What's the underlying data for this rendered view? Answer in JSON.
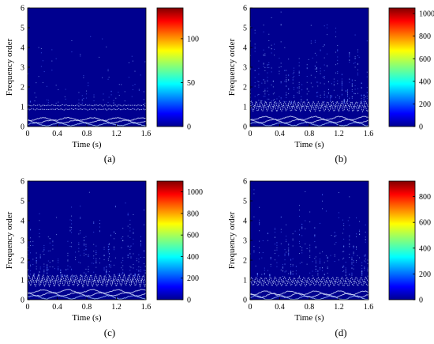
{
  "chart_data": [
    {
      "type": "heatmap",
      "panel": "(a)",
      "xlabel": "Time (s)",
      "ylabel": "Frequency order",
      "xlim": [
        0,
        1.6
      ],
      "ylim": [
        0,
        6
      ],
      "x_ticks": [
        "0",
        "0.4",
        "0.8",
        "1.2",
        "1.6"
      ],
      "y_ticks": [
        "0",
        "1",
        "2",
        "3",
        "4",
        "5",
        "6"
      ],
      "colorbar": {
        "min": 0,
        "max": 135,
        "ticks": [
          "0",
          "50",
          "100"
        ],
        "tick_values": [
          0,
          50,
          100
        ]
      },
      "features": {
        "band_order": 0.95,
        "low_band_max": 0.45,
        "dot_density": 0.25,
        "band_amplitude": 0.02,
        "low_intensity": 0.55
      }
    },
    {
      "type": "heatmap",
      "panel": "(b)",
      "xlabel": "Time (s)",
      "ylabel": "Frequency order",
      "xlim": [
        0,
        1.6
      ],
      "ylim": [
        0,
        6
      ],
      "x_ticks": [
        "0",
        "0.4",
        "0.8",
        "1.2",
        "1.6"
      ],
      "y_ticks": [
        "0",
        "1",
        "2",
        "3",
        "4",
        "5",
        "6"
      ],
      "colorbar": {
        "min": 0,
        "max": 1050,
        "ticks": [
          "0",
          "200",
          "400",
          "600",
          "800",
          "1000"
        ],
        "tick_values": [
          0,
          200,
          400,
          600,
          800,
          1000
        ]
      },
      "features": {
        "band_order": 1.0,
        "low_band_max": 0.5,
        "dot_density": 0.9,
        "band_amplitude": 0.15,
        "low_intensity": 0.65
      }
    },
    {
      "type": "heatmap",
      "panel": "(c)",
      "xlabel": "Time (s)",
      "ylabel": "Frequency order",
      "xlim": [
        0,
        1.6
      ],
      "ylim": [
        0,
        6
      ],
      "x_ticks": [
        "0",
        "0.4",
        "0.8",
        "1.2",
        "1.6"
      ],
      "y_ticks": [
        "0",
        "1",
        "2",
        "3",
        "4",
        "5",
        "6"
      ],
      "colorbar": {
        "min": 0,
        "max": 1100,
        "ticks": [
          "0",
          "200",
          "400",
          "600",
          "800",
          "1000"
        ],
        "tick_values": [
          0,
          200,
          400,
          600,
          800,
          1000
        ]
      },
      "features": {
        "band_order": 0.95,
        "low_band_max": 0.5,
        "dot_density": 0.7,
        "band_amplitude": 0.18,
        "low_intensity": 0.65
      }
    },
    {
      "type": "heatmap",
      "panel": "(d)",
      "xlabel": "Time (s)",
      "ylabel": "Frequency order",
      "xlim": [
        0,
        1.6
      ],
      "ylim": [
        0,
        6
      ],
      "x_ticks": [
        "0",
        "0.4",
        "0.8",
        "1.2",
        "1.6"
      ],
      "y_ticks": [
        "0",
        "1",
        "2",
        "3",
        "4",
        "5",
        "6"
      ],
      "colorbar": {
        "min": 0,
        "max": 920,
        "ticks": [
          "0",
          "200",
          "400",
          "600",
          "800"
        ],
        "tick_values": [
          0,
          200,
          400,
          600,
          800
        ]
      },
      "features": {
        "band_order": 0.9,
        "low_band_max": 0.4,
        "dot_density": 0.8,
        "band_amplitude": 0.12,
        "low_intensity": 0.8
      }
    }
  ]
}
